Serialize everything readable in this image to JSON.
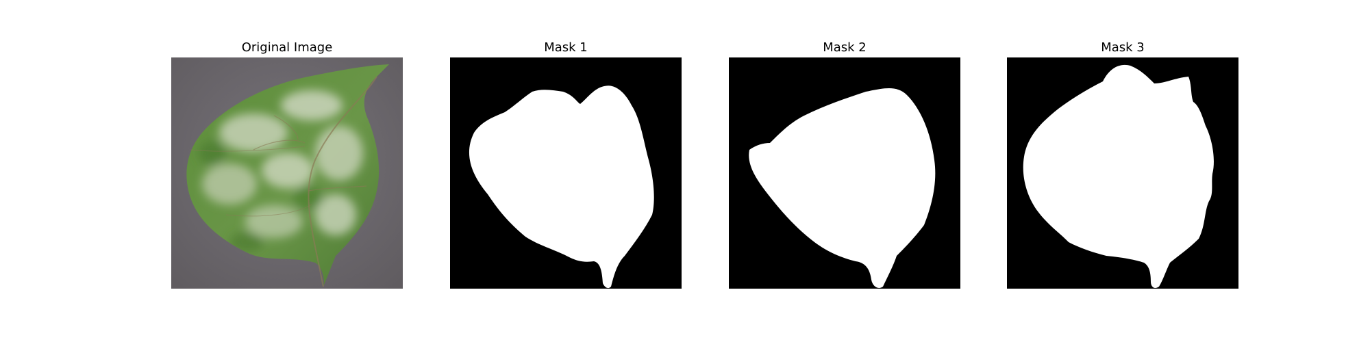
{
  "figure": {
    "panels": [
      {
        "title": "Original Image",
        "kind": "photo",
        "subject": "leaf-photo"
      },
      {
        "title": "Mask 1",
        "kind": "mask",
        "subject": "leaf-mask"
      },
      {
        "title": "Mask 2",
        "kind": "mask",
        "subject": "leaf-mask"
      },
      {
        "title": "Mask 3",
        "kind": "mask",
        "subject": "leaf-mask"
      }
    ]
  },
  "colors": {
    "page_background": "#ffffff",
    "mask_background": "#000000",
    "mask_foreground": "#ffffff",
    "photo_background": "#6f6b6e",
    "leaf_green": "#5f8f3c",
    "leaf_mildew": "#c8d2b8"
  }
}
